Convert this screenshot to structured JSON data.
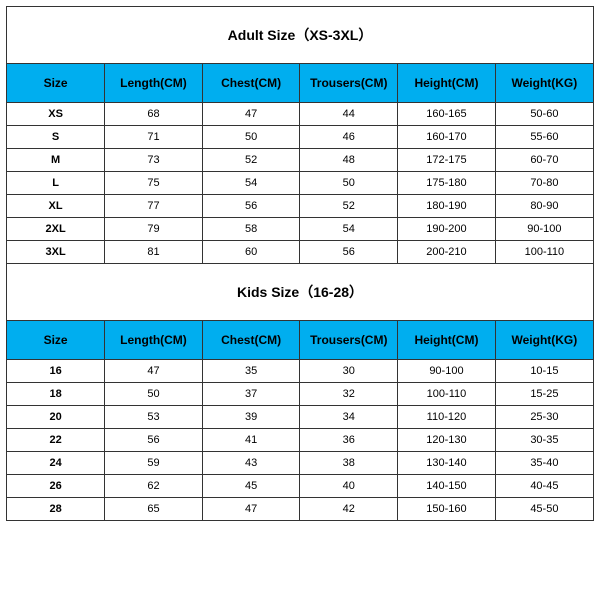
{
  "styling": {
    "header_bg": "#00aeef",
    "header_fg": "#000000",
    "border_color": "#333333",
    "title_fontsize": 14,
    "header_fontsize": 12,
    "cell_fontsize": 11,
    "background": "#ffffff"
  },
  "adult": {
    "title": "Adult Size（XS-3XL）",
    "columns": [
      "Size",
      "Length(CM)",
      "Chest(CM)",
      "Trousers(CM)",
      "Height(CM)",
      "Weight(KG)"
    ],
    "rows": [
      [
        "XS",
        "68",
        "47",
        "44",
        "160-165",
        "50-60"
      ],
      [
        "S",
        "71",
        "50",
        "46",
        "160-170",
        "55-60"
      ],
      [
        "M",
        "73",
        "52",
        "48",
        "172-175",
        "60-70"
      ],
      [
        "L",
        "75",
        "54",
        "50",
        "175-180",
        "70-80"
      ],
      [
        "XL",
        "77",
        "56",
        "52",
        "180-190",
        "80-90"
      ],
      [
        "2XL",
        "79",
        "58",
        "54",
        "190-200",
        "90-100"
      ],
      [
        "3XL",
        "81",
        "60",
        "56",
        "200-210",
        "100-110"
      ]
    ]
  },
  "kids": {
    "title": "Kids Size（16-28）",
    "columns": [
      "Size",
      "Length(CM)",
      "Chest(CM)",
      "Trousers(CM)",
      "Height(CM)",
      "Weight(KG)"
    ],
    "rows": [
      [
        "16",
        "47",
        "35",
        "30",
        "90-100",
        "10-15"
      ],
      [
        "18",
        "50",
        "37",
        "32",
        "100-110",
        "15-25"
      ],
      [
        "20",
        "53",
        "39",
        "34",
        "110-120",
        "25-30"
      ],
      [
        "22",
        "56",
        "41",
        "36",
        "120-130",
        "30-35"
      ],
      [
        "24",
        "59",
        "43",
        "38",
        "130-140",
        "35-40"
      ],
      [
        "26",
        "62",
        "45",
        "40",
        "140-150",
        "40-45"
      ],
      [
        "28",
        "65",
        "47",
        "42",
        "150-160",
        "45-50"
      ]
    ]
  }
}
